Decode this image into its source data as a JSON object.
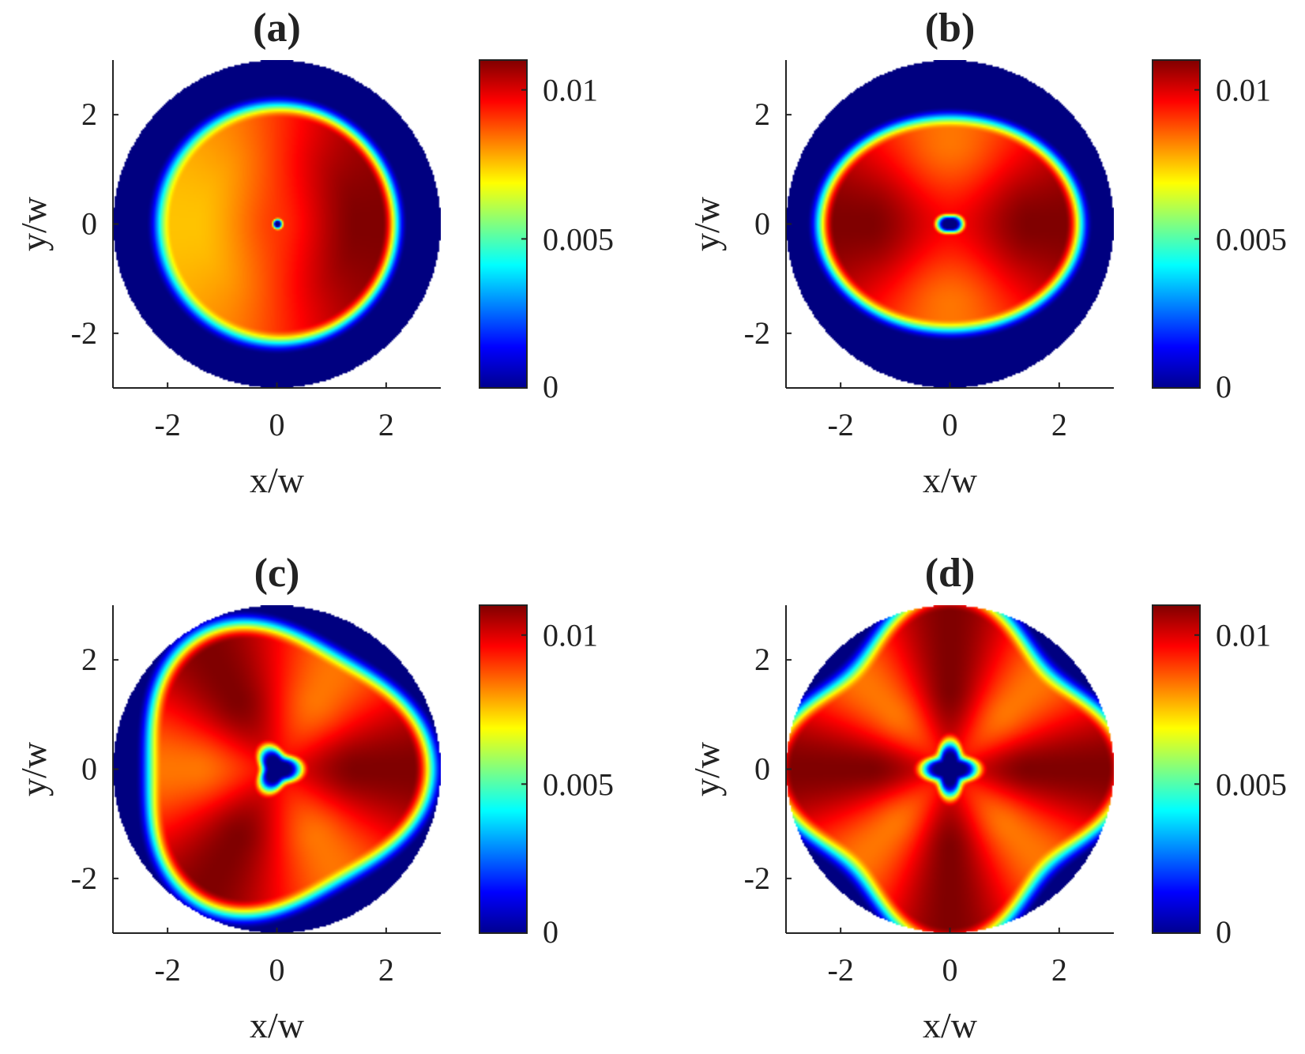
{
  "figure": {
    "panels": [
      "a",
      "b",
      "c",
      "d"
    ]
  },
  "chart_data": [
    {
      "type": "heatmap",
      "title": "(a)",
      "xlabel": "x/w",
      "ylabel": "y/w",
      "xlim": [
        -3,
        3
      ],
      "ylim": [
        -3,
        3
      ],
      "xticks": [
        "-2",
        "0",
        "2"
      ],
      "yticks": [
        "2",
        "0",
        "-2"
      ],
      "colorbar": {
        "min": 0,
        "max": 0.011,
        "ticks": [
          "0.01",
          "0.005",
          "0"
        ],
        "colormap": "jet"
      },
      "pattern": {
        "symmetry": 1,
        "peak_value": 0.011,
        "core_radius": 0.05,
        "ring_radius": 2.1,
        "domain_radius": 3.0
      }
    },
    {
      "type": "heatmap",
      "title": "(b)",
      "xlabel": "x/w",
      "ylabel": "y/w",
      "xlim": [
        -3,
        3
      ],
      "ylim": [
        -3,
        3
      ],
      "xticks": [
        "-2",
        "0",
        "2"
      ],
      "yticks": [
        "2",
        "0",
        "-2"
      ],
      "colorbar": {
        "min": 0,
        "max": 0.011,
        "ticks": [
          "0.01",
          "0.005",
          "0"
        ],
        "colormap": "jet"
      },
      "pattern": {
        "symmetry": 2,
        "peak_value": 0.011,
        "core_radius": 0.15,
        "ring_radius": 2.3,
        "domain_radius": 3.0
      }
    },
    {
      "type": "heatmap",
      "title": "(c)",
      "xlabel": "x/w",
      "ylabel": "y/w",
      "xlim": [
        -3,
        3
      ],
      "ylim": [
        -3,
        3
      ],
      "xticks": [
        "-2",
        "0",
        "2"
      ],
      "yticks": [
        "2",
        "0",
        "-2"
      ],
      "colorbar": {
        "min": 0,
        "max": 0.011,
        "ticks": [
          "0.01",
          "0.005",
          "0"
        ],
        "colormap": "jet"
      },
      "pattern": {
        "symmetry": 3,
        "peak_value": 0.011,
        "core_radius": 0.3,
        "ring_radius": 2.5,
        "domain_radius": 3.0
      }
    },
    {
      "type": "heatmap",
      "title": "(d)",
      "xlabel": "x/w",
      "ylabel": "y/w",
      "xlim": [
        -3,
        3
      ],
      "ylim": [
        -3,
        3
      ],
      "xticks": [
        "-2",
        "0",
        "2"
      ],
      "yticks": [
        "2",
        "0",
        "-2"
      ],
      "colorbar": {
        "min": 0,
        "max": 0.011,
        "ticks": [
          "0.01",
          "0.005",
          "0"
        ],
        "colormap": "jet"
      },
      "pattern": {
        "symmetry": 4,
        "peak_value": 0.011,
        "core_radius": 0.35,
        "ring_radius": 2.8,
        "domain_radius": 3.0
      }
    }
  ]
}
